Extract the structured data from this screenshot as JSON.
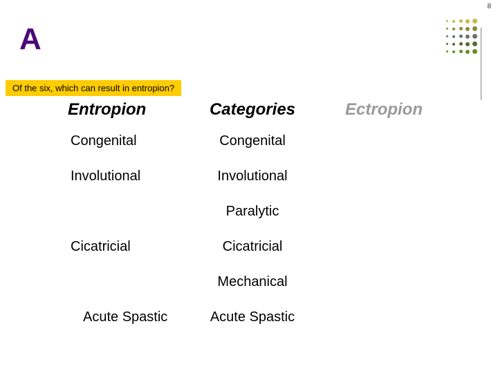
{
  "slideNumber": "8",
  "titleLetter": "A",
  "titleColor": "#4b0978",
  "question": "Of the six, which can result in entropion?",
  "questionBg": "#ffcc00",
  "headers": {
    "left": "Entropion",
    "mid": "Categories",
    "right": "Ectropion"
  },
  "headerColors": {
    "left": "#000000",
    "mid": "#000000",
    "right": "#9a9a9a"
  },
  "rows": [
    {
      "left": "Congenital",
      "mid": "Congenital",
      "right": ""
    },
    {
      "left": "Involutional",
      "mid": "Involutional",
      "right": ""
    },
    {
      "left": "",
      "mid": "Paralytic",
      "right": ""
    },
    {
      "left": "Cicatricial",
      "mid": "Cicatricial",
      "right": ""
    },
    {
      "left": "",
      "mid": "Mechanical",
      "right": ""
    },
    {
      "left": "Acute Spastic",
      "mid": "Acute Spastic",
      "right": "",
      "indent": true
    }
  ],
  "dotGrid": {
    "colors": [
      "#c6b848",
      "#8a8a3a",
      "#707070",
      "#556b2f",
      "#6b8e23"
    ],
    "sizes": [
      3,
      4,
      5,
      6,
      7
    ]
  }
}
